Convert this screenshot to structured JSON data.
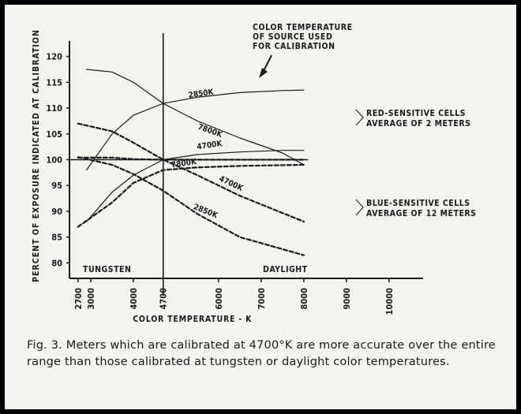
{
  "chart_data": {
    "type": "line",
    "ylabel": "PERCENT OF EXPOSURE INDICATED AT CALIBRATION",
    "xlabel": "COLOR TEMPERATURE - K",
    "xlim": [
      2500,
      10800
    ],
    "ylim": [
      77,
      123
    ],
    "x_ticks": [
      2700,
      3000,
      4000,
      4700,
      6000,
      7000,
      8000,
      9000,
      10000
    ],
    "y_ticks": [
      80,
      85,
      90,
      95,
      100,
      105,
      110,
      115,
      120
    ],
    "reference_lines": [
      {
        "axis": "x",
        "value": 4700
      },
      {
        "axis": "y",
        "value": 100
      }
    ],
    "region_labels": [
      "TUNGSTEN",
      "DAYLIGHT"
    ],
    "source_label": "COLOR TEMPERATURE OF SOURCE USED FOR CALIBRATION",
    "groups": [
      {
        "label": "RED-SENSITIVE CELLS AVERAGE OF 2 METERS",
        "color": "#1a1a1a",
        "dash": "solid"
      },
      {
        "label": "BLUE-SENSITIVE CELLS AVERAGE OF 12 METERS",
        "color": "#1a1a1a",
        "dash": "dashed"
      }
    ],
    "series": [
      {
        "name": "2850K",
        "group": 0,
        "x": [
          2900,
          3500,
          4000,
          4700,
          5500,
          6500,
          7500,
          8000
        ],
        "y": [
          98,
          105,
          108.6,
          110.9,
          112.1,
          113,
          113.4,
          113.5
        ]
      },
      {
        "name": "7800K",
        "group": 0,
        "x": [
          2900,
          3500,
          4000,
          4700,
          5500,
          6500,
          7500,
          8000
        ],
        "y": [
          117.5,
          117,
          115,
          110.9,
          107.5,
          104.2,
          101.3,
          99
        ]
      },
      {
        "name": "4700K",
        "group": 0,
        "x": [
          2900,
          3500,
          4000,
          4700,
          5500,
          6500,
          7500,
          8000
        ],
        "y": [
          88,
          93.7,
          97,
          100,
          101,
          101.5,
          101.8,
          101.8
        ]
      },
      {
        "name": "7800K",
        "group": 1,
        "x": [
          2700,
          3500,
          4000,
          4700,
          5500,
          6500,
          8000
        ],
        "y": [
          107,
          105.5,
          103.3,
          100,
          97,
          93,
          88
        ]
      },
      {
        "name": "4700K",
        "group": 1,
        "x": [
          2700,
          3500,
          4000,
          4700,
          5500,
          6500,
          8000
        ],
        "y": [
          100.4,
          100.4,
          100.1,
          100,
          100,
          100,
          100
        ]
      },
      {
        "name": "2850K",
        "group": 1,
        "x": [
          2700,
          3500,
          4000,
          4700,
          5500,
          6500,
          8000
        ],
        "y": [
          87,
          91.7,
          95.5,
          98,
          98.5,
          98.8,
          99
        ]
      },
      {
        "name": "",
        "group": 1,
        "x": [
          2700,
          3500,
          4000,
          4700,
          5500,
          6500,
          8000
        ],
        "y": [
          100.5,
          99,
          97.2,
          94,
          89.5,
          85,
          81.5
        ]
      }
    ],
    "series_labels": [
      {
        "text": "2850K",
        "x": 5300,
        "y": 112
      },
      {
        "text": "7800K",
        "x": 5500,
        "y": 106
      },
      {
        "text": "4700K",
        "x": 5500,
        "y": 102
      },
      {
        "text": "7800K",
        "x": 4900,
        "y": 98.5
      },
      {
        "text": "4700K",
        "x": 6000,
        "y": 96
      },
      {
        "text": "2850K",
        "x": 5400,
        "y": 90.5
      }
    ]
  },
  "caption": "Fig. 3.  Meters which are calibrated at 4700°K are more accurate over the entire range than those calibrated at tungsten or daylight color temperatures."
}
